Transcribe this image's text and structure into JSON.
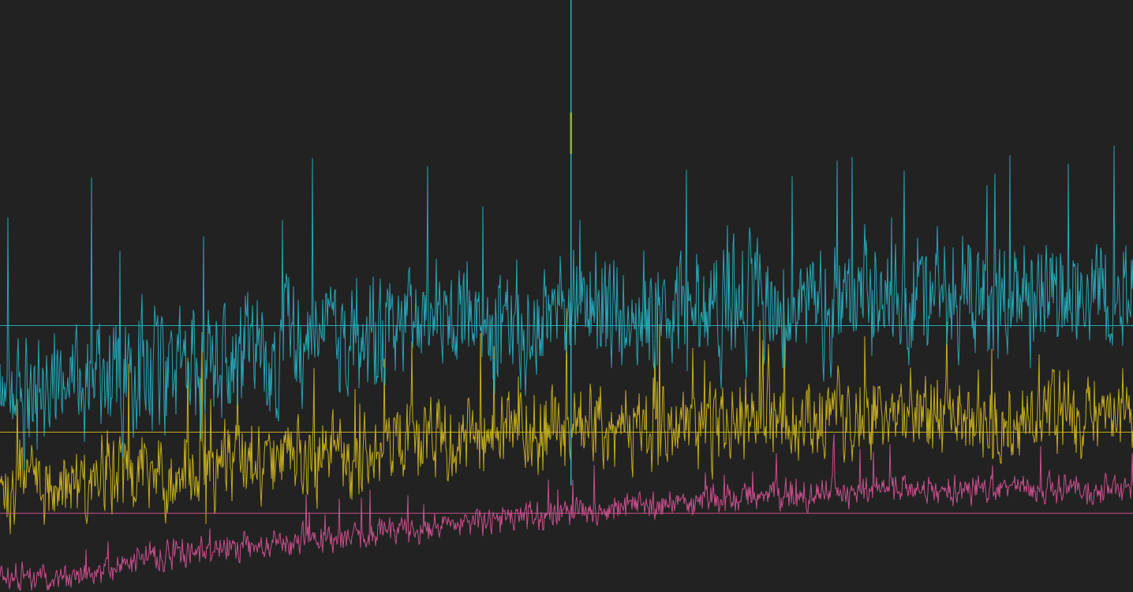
{
  "chart_data": {
    "type": "line",
    "title": "",
    "xlabel": "",
    "ylabel": "",
    "grid": false,
    "legend": "none",
    "background": "#222222",
    "xlim": [
      0,
      1000
    ],
    "ylim": [
      0,
      100
    ],
    "series": [
      {
        "key": "pink",
        "color": "#c94f8c",
        "reference_value": 13.3,
        "profile": [
          [
            0,
            2.5
          ],
          [
            60,
            2.5
          ],
          [
            100,
            4.5
          ],
          [
            150,
            6.5
          ],
          [
            250,
            8.5
          ],
          [
            350,
            10.2
          ],
          [
            450,
            12.5
          ],
          [
            550,
            14.3
          ],
          [
            650,
            16.0
          ],
          [
            800,
            17.5
          ],
          [
            1000,
            17.5
          ]
        ],
        "noise_amplitude": 2.6,
        "seed": 11
      },
      {
        "key": "yellow",
        "color": "#c4ad1c",
        "reference_value": 27.0,
        "profile": [
          [
            0,
            18.0
          ],
          [
            150,
            20.5
          ],
          [
            300,
            24.0
          ],
          [
            500,
            27.5
          ],
          [
            700,
            29.5
          ],
          [
            1000,
            30.0
          ]
        ],
        "noise_amplitude": 7.5,
        "seed": 23
      },
      {
        "key": "cyan",
        "color": "#25a6b6",
        "reference_value": 45.0,
        "profile": [
          [
            0,
            33.0
          ],
          [
            150,
            37.0
          ],
          [
            300,
            44.0
          ],
          [
            500,
            47.5
          ],
          [
            700,
            49.0
          ],
          [
            1000,
            50.0
          ]
        ],
        "noise_amplitude": 11.0,
        "seed": 37
      }
    ],
    "spike": {
      "x": 504,
      "y": 100,
      "base": 18,
      "color": "#2fb0c0",
      "accent_color": "#8fb23a",
      "accent_top": 81,
      "accent_bottom": 74
    }
  }
}
